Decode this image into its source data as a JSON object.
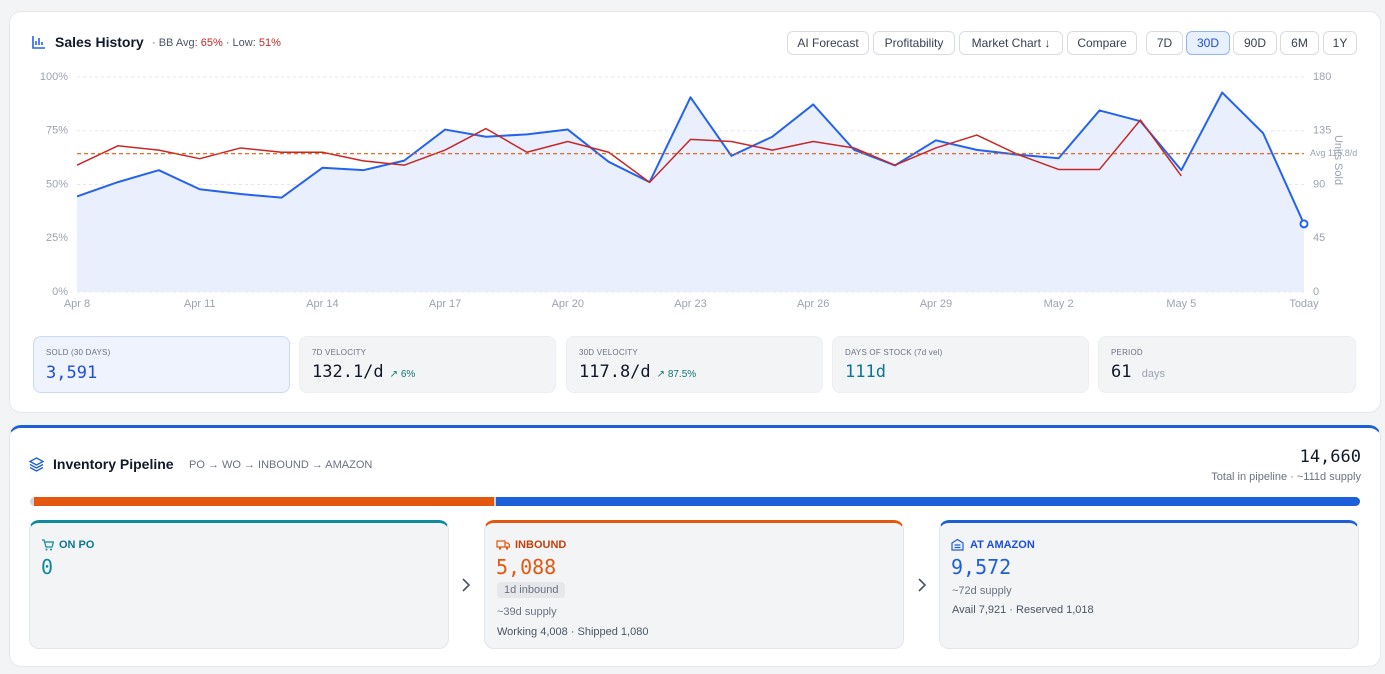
{
  "header": {
    "title": "Sales History",
    "bb_avg_label": "· BB Avg:",
    "bb_avg": "65%",
    "low_label": "· Low:",
    "low": "51%"
  },
  "actions": [
    "AI Forecast",
    "Profitability",
    "Market Chart ↓",
    "Compare"
  ],
  "ranges": [
    "7D",
    "30D",
    "90D",
    "6M",
    "1Y"
  ],
  "active_range_index": 1,
  "chart_data": {
    "type": "line",
    "categories": [
      "Apr 8",
      null,
      null,
      "Apr 11",
      null,
      null,
      "Apr 14",
      null,
      null,
      "Apr 17",
      null,
      null,
      "Apr 20",
      null,
      null,
      "Apr 23",
      null,
      null,
      "Apr 26",
      null,
      null,
      "Apr 29",
      null,
      null,
      "May 2",
      null,
      null,
      "May 5",
      null,
      null,
      "Today"
    ],
    "series": [
      {
        "color": "#2563eb",
        "axis": "y2",
        "area": true,
        "values": [
          80,
          92,
          102,
          86,
          82,
          79,
          104,
          102,
          110,
          136,
          130,
          132,
          136,
          109,
          92,
          163,
          114,
          130,
          157,
          119,
          106,
          127,
          119,
          115,
          112,
          152,
          143,
          102,
          167,
          133,
          57
        ]
      },
      {
        "color": "#c62828",
        "values": [
          59,
          68,
          66,
          62,
          67,
          65,
          65,
          61,
          59,
          66,
          76,
          65,
          70,
          65,
          51,
          71,
          70,
          66,
          70,
          67,
          59,
          67,
          73,
          64,
          57,
          57,
          80,
          54,
          null,
          null,
          null
        ]
      }
    ],
    "avg_line": {
      "value": 115.8,
      "label": "Avg 115.8/d",
      "color": "#e8590c",
      "axis": "y2"
    },
    "y2_label": "Units Sold",
    "ylim": [
      0,
      100
    ],
    "yticks": [
      {
        "value": 0,
        "label": "0%"
      },
      {
        "value": 25,
        "label": "25%"
      },
      {
        "value": 50,
        "label": "50%"
      },
      {
        "value": 75,
        "label": "75%"
      },
      {
        "value": 100,
        "label": "100%"
      }
    ],
    "y2lim": [
      0,
      180
    ],
    "y2ticks": [
      0,
      45,
      90,
      135,
      180
    ],
    "grid": true
  },
  "stats": [
    {
      "label": "SOLD (30 DAYS)",
      "value": "3,591"
    },
    {
      "label": "7D VELOCITY",
      "value": "132.1/d",
      "change": "↗ 6%"
    },
    {
      "label": "30D VELOCITY",
      "value": "117.8/d",
      "change": "↗ 87.5%"
    },
    {
      "label": "DAYS OF STOCK (7d vel)",
      "value": "111d"
    },
    {
      "label": "PERIOD",
      "value": "61",
      "unit": "days"
    }
  ],
  "pipeline": {
    "title": "Inventory Pipeline",
    "flow": "PO → WO → INBOUND → AMAZON",
    "total": "14,660",
    "total_note": "Total in pipeline · ~111d supply",
    "stages": [
      {
        "name": "ON PO",
        "count": 0,
        "color": "#0e8a9e"
      },
      {
        "name": "INBOUND",
        "count": 5088,
        "count_label": "5,088",
        "badge": "1d inbound",
        "supply": "~39d supply",
        "detail": "Working 4,008 · Shipped 1,080",
        "color": "#e4570f"
      },
      {
        "name": "AT AMAZON",
        "count": 9572,
        "count_label": "9,572",
        "supply": "~72d supply",
        "detail": "Avail 7,921 · Reserved 1,018",
        "color": "#1d5fd8"
      }
    ]
  }
}
